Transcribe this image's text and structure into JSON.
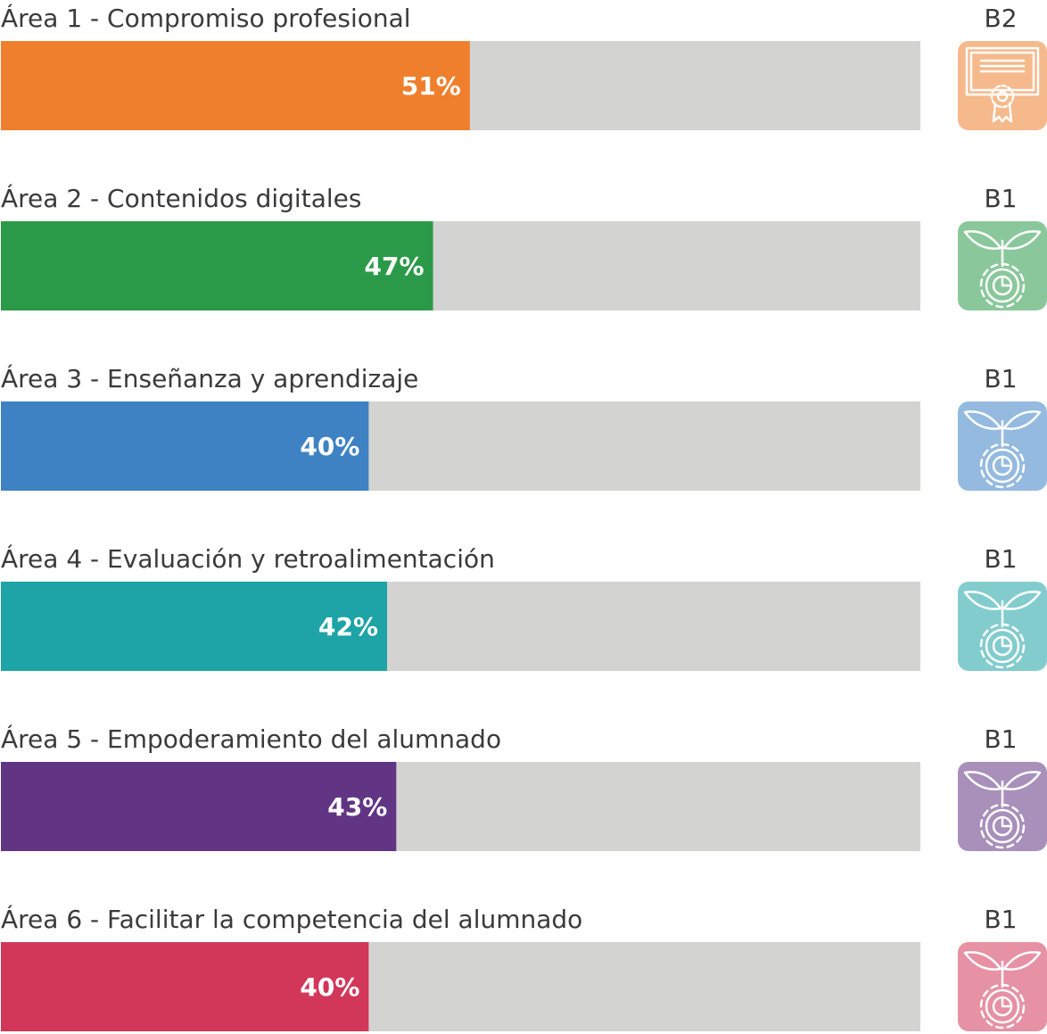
{
  "chart_data": {
    "type": "progress",
    "categories": [
      "Área 1 - Compromiso profesional",
      "Área 2 - Contenidos digitales",
      "Área 3 - Enseñanza y aprendizaje",
      "Área 4 - Evaluación y retroalimentación",
      "Área 5 - Empoderamiento del alumnado",
      "Área 6 - Facilitar la competencia del alumnado"
    ],
    "values": [
      51,
      47,
      40,
      42,
      43,
      40
    ],
    "value_labels": [
      "51%",
      "47%",
      "40%",
      "42%",
      "43%",
      "40%"
    ],
    "levels": [
      "B2",
      "B1",
      "B1",
      "B1",
      "B1",
      "B1"
    ],
    "colors": [
      "#ef7f2c",
      "#2a9a48",
      "#3e82c4",
      "#1ea3a6",
      "#613583",
      "#d2375a"
    ],
    "track_color": "#d3d3d2",
    "xlim": [
      0,
      100
    ]
  }
}
